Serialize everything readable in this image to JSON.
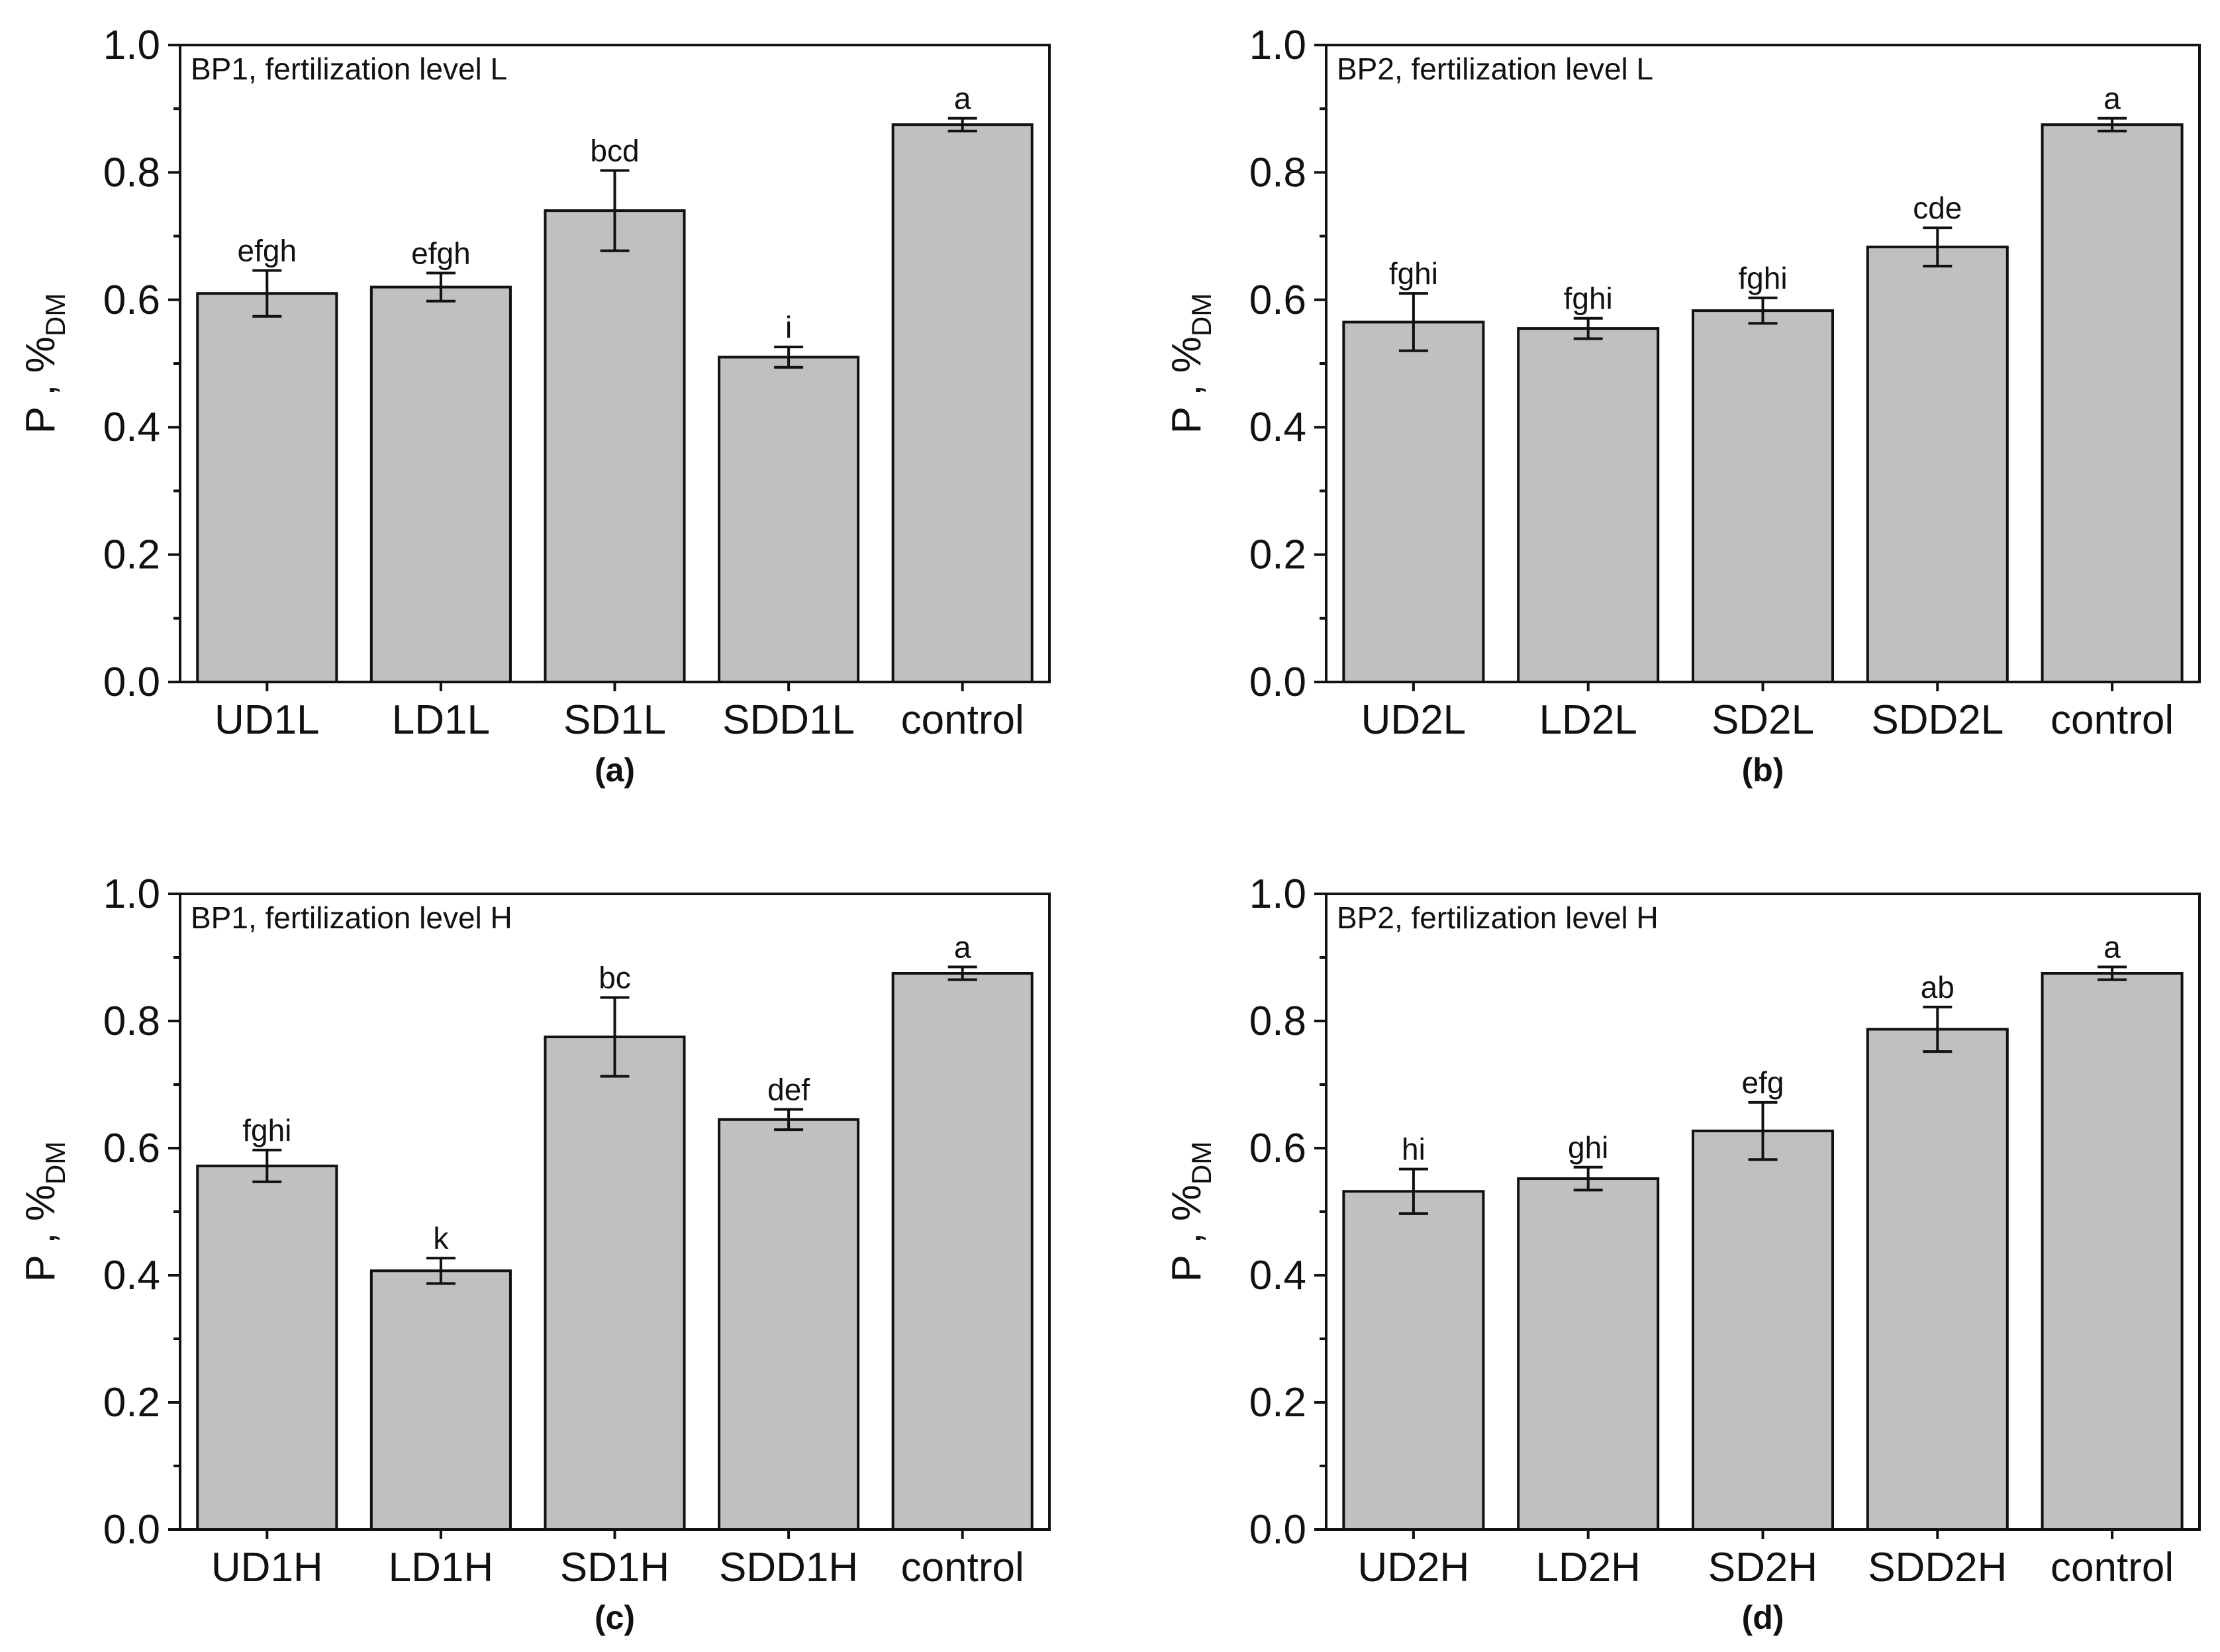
{
  "figure": {
    "bar_color": "#c0c0c0",
    "axis_color": "#111111",
    "ylabel_main": "P , %",
    "ylabel_sub": "DM",
    "yticks": [
      "0.0",
      "0.2",
      "0.4",
      "0.6",
      "0.8",
      "1.0"
    ]
  },
  "chart_data": [
    {
      "type": "bar",
      "panel": "(a)",
      "title": "BP1, fertilization level L",
      "categories": [
        "UD1L",
        "LD1L",
        "SD1L",
        "SDD1L",
        "control"
      ],
      "values": [
        0.61,
        0.62,
        0.74,
        0.51,
        0.875
      ],
      "errors": [
        0.036,
        0.022,
        0.063,
        0.016,
        0.01
      ],
      "significance": [
        "efgh",
        "efgh",
        "bcd",
        "i",
        "a"
      ],
      "xlabel": "",
      "ylabel": "P , %DM",
      "ylim": [
        0,
        1.0
      ],
      "grid": false,
      "legend": "none"
    },
    {
      "type": "bar",
      "panel": "(b)",
      "title": "BP2, fertilization level L",
      "categories": [
        "UD2L",
        "LD2L",
        "SD2L",
        "SDD2L",
        "control"
      ],
      "values": [
        0.565,
        0.555,
        0.583,
        0.683,
        0.875
      ],
      "errors": [
        0.045,
        0.016,
        0.02,
        0.03,
        0.01
      ],
      "significance": [
        "fghi",
        "fghi",
        "fghi",
        "cde",
        "a"
      ],
      "xlabel": "",
      "ylabel": "P , %DM",
      "ylim": [
        0,
        1.0
      ],
      "grid": false,
      "legend": "none"
    },
    {
      "type": "bar",
      "panel": "(c)",
      "title": "BP1, fertilization level H",
      "categories": [
        "UD1H",
        "LD1H",
        "SD1H",
        "SDD1H",
        "control"
      ],
      "values": [
        0.572,
        0.407,
        0.775,
        0.645,
        0.875
      ],
      "errors": [
        0.025,
        0.02,
        0.062,
        0.016,
        0.01
      ],
      "significance": [
        "fghi",
        "k",
        "bc",
        "def",
        "a"
      ],
      "xlabel": "",
      "ylabel": "P , %DM",
      "ylim": [
        0,
        1.0
      ],
      "grid": false,
      "legend": "none"
    },
    {
      "type": "bar",
      "panel": "(d)",
      "title": "BP2, fertilization level H",
      "categories": [
        "UD2H",
        "LD2H",
        "SD2H",
        "SDD2H",
        "control"
      ],
      "values": [
        0.532,
        0.552,
        0.627,
        0.787,
        0.875
      ],
      "errors": [
        0.035,
        0.018,
        0.045,
        0.035,
        0.01
      ],
      "significance": [
        "hi",
        "ghi",
        "efg",
        "ab",
        "a"
      ],
      "xlabel": "",
      "ylabel": "P , %DM",
      "ylim": [
        0,
        1.0
      ],
      "grid": false,
      "legend": "none"
    }
  ]
}
